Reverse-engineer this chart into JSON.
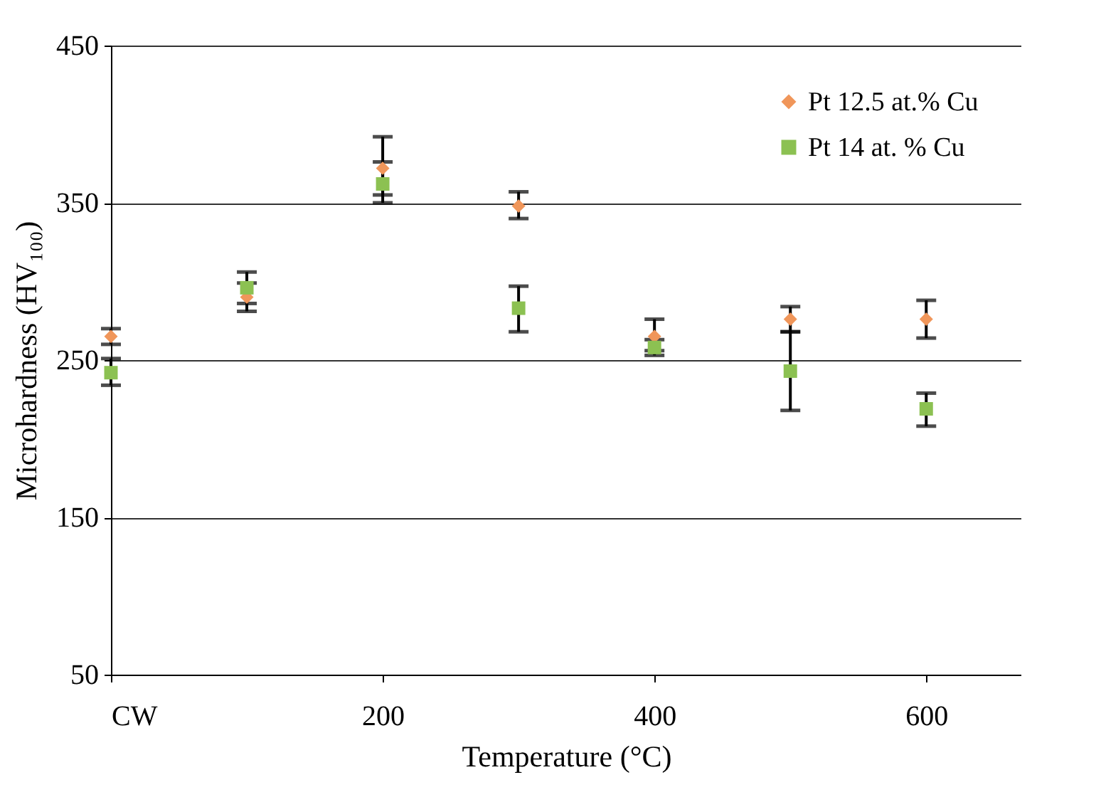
{
  "chart_data": {
    "type": "scatter",
    "xlabel": "Temperature (°C)",
    "ylabel": "Microhardness (HV₁₀₀)",
    "x": [
      0,
      100,
      200,
      300,
      400,
      500,
      600
    ],
    "series": [
      {
        "name": "Pt 12.5 at.% Cu",
        "color": "#f0965a",
        "marker": "diamond",
        "values": [
          265,
          290,
          372,
          348,
          265,
          276,
          276
        ],
        "errors": [
          [
            260,
            270
          ],
          [
            281,
            299
          ],
          [
            355,
            392
          ],
          [
            340,
            357
          ],
          [
            256,
            276
          ],
          [
            268,
            284
          ],
          [
            264,
            288
          ]
        ]
      },
      {
        "name": "Pt 14 at. % Cu",
        "color": "#8cc152",
        "marker": "square",
        "values": [
          242,
          296,
          362,
          283,
          258,
          243,
          219
        ],
        "errors": [
          [
            234,
            251
          ],
          [
            286,
            306
          ],
          [
            350,
            376
          ],
          [
            268,
            297
          ],
          [
            253,
            263
          ],
          [
            218,
            268
          ],
          [
            208,
            229
          ]
        ]
      }
    ],
    "xlim": [
      0,
      670
    ],
    "xticks": [
      {
        "value": 0,
        "label": "CW"
      },
      200,
      400,
      600
    ],
    "ylim": [
      50,
      450
    ],
    "yticks": [
      50,
      150,
      250,
      350,
      450
    ],
    "grid": "y",
    "legend": "top right"
  }
}
